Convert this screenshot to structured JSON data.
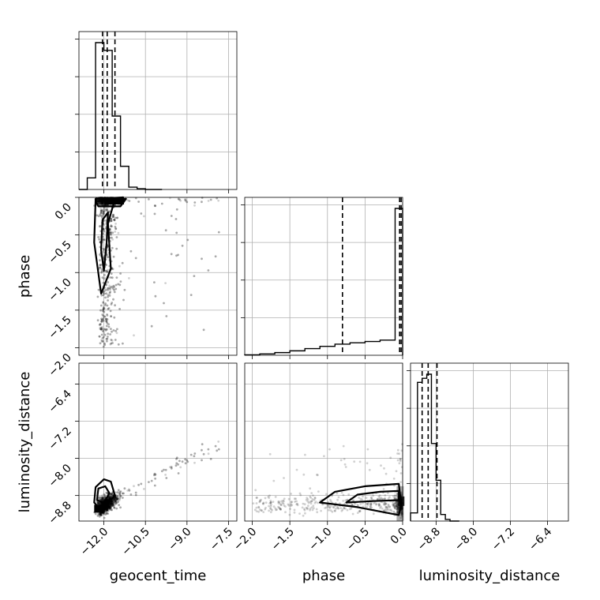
{
  "chart_data": {
    "type": "corner",
    "parameters": [
      "geocent_time",
      "phase",
      "luminosity_distance"
    ],
    "axis_labels": {
      "geocent_time": "geocent_time",
      "phase": "phase",
      "luminosity_distance": "luminosity_distance"
    },
    "ranges": {
      "geocent_time": [
        -12.9,
        -7.2
      ],
      "phase": [
        -2.1,
        0.0
      ],
      "luminosity_distance": [
        -9.35,
        -5.95
      ]
    },
    "ticks": {
      "geocent_time": [
        -12.0,
        -10.5,
        -9.0,
        -7.5
      ],
      "phase": [
        -2.0,
        -1.5,
        -1.0,
        -0.5,
        0.0
      ],
      "luminosity_distance": [
        -8.8,
        -8.0,
        -7.2,
        -6.4
      ]
    },
    "tick_labels": {
      "geocent_time": [
        "−12.0",
        "−10.5",
        "−9.0",
        "−7.5"
      ],
      "phase": [
        "−2.0",
        "−1.5",
        "−1.0",
        "−0.5",
        "0.0"
      ],
      "luminosity_distance": [
        "−8.8",
        "−8.0",
        "−7.2",
        "−6.4"
      ]
    },
    "quantiles": {
      "geocent_time": [
        -12.05,
        -11.88,
        -11.6
      ],
      "phase": [
        -0.8,
        -0.04,
        -0.02
      ],
      "luminosity_distance": [
        -9.1,
        -8.97,
        -8.78
      ]
    },
    "histograms": {
      "geocent_time": {
        "edges": [
          -12.9,
          -12.6,
          -12.3,
          -12.0,
          -11.7,
          -11.4,
          -11.1,
          -10.8,
          -10.5,
          -10.2,
          -9.9
        ],
        "counts": [
          0,
          15,
          190,
          180,
          95,
          30,
          3,
          1,
          0,
          0
        ]
      },
      "phase": {
        "edges": [
          -2.1,
          -1.9,
          -1.7,
          -1.5,
          -1.3,
          -1.1,
          -0.9,
          -0.7,
          -0.5,
          -0.3,
          -0.1,
          0.0
        ],
        "counts": [
          1,
          3,
          6,
          10,
          15,
          20,
          25,
          28,
          31,
          34,
          330
        ]
      },
      "luminosity_distance": {
        "edges": [
          -9.35,
          -9.2,
          -9.1,
          -9.0,
          -8.9,
          -8.8,
          -8.7,
          -8.6,
          -8.5,
          -8.4,
          -8.3
        ],
        "counts": [
          10,
          170,
          175,
          180,
          95,
          50,
          8,
          2,
          0,
          0
        ]
      }
    },
    "grid": true,
    "note_scatter": "2D panels show dense sample clouds with 2D-density contour lines"
  }
}
